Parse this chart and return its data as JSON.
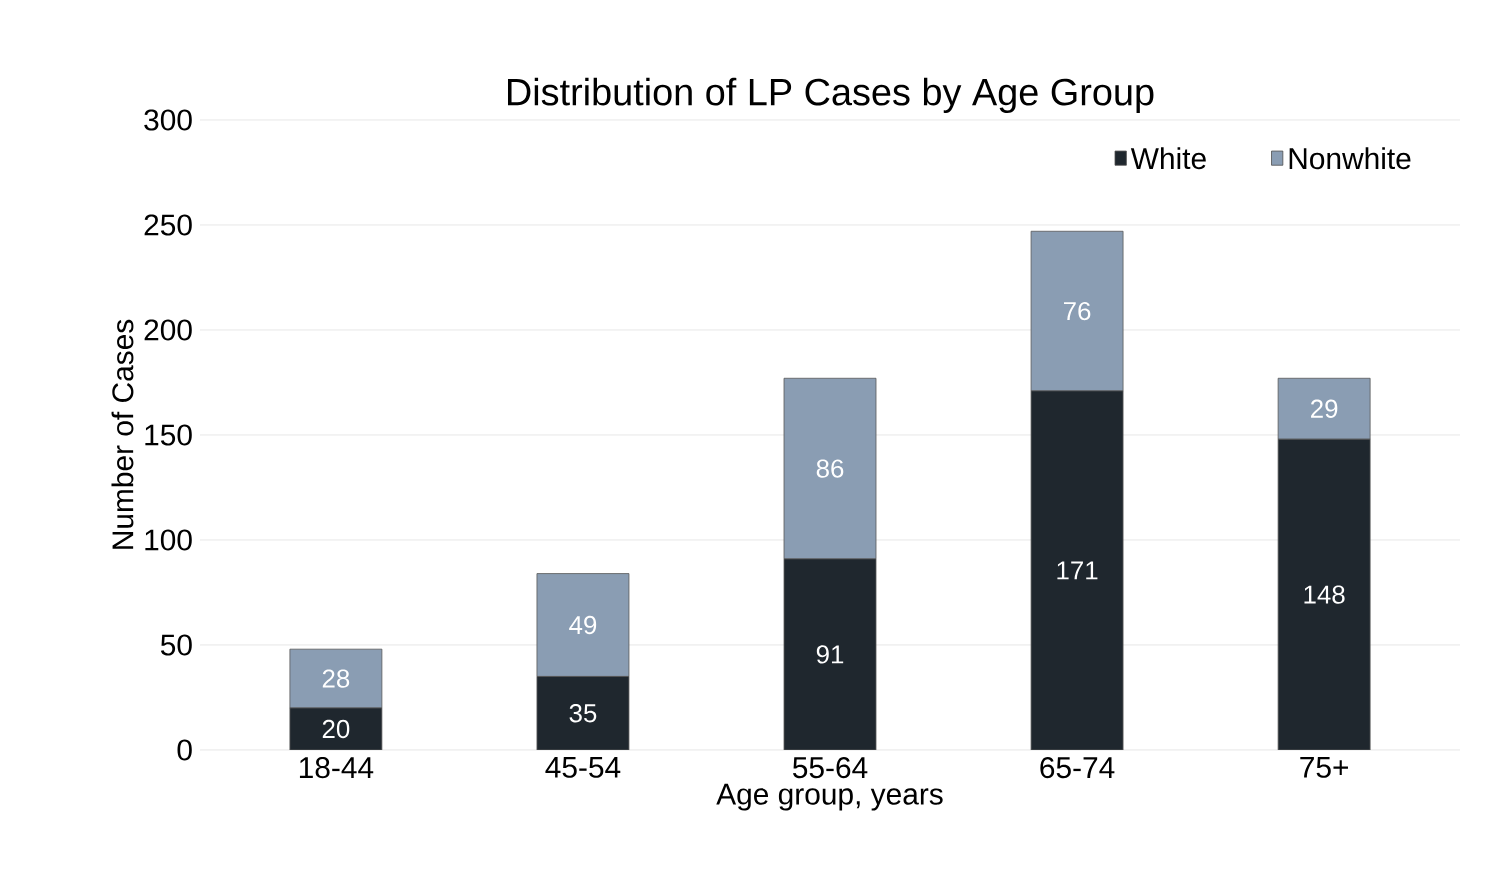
{
  "chart_data": {
    "type": "bar",
    "stacked": true,
    "title": "Distribution of LP Cases by Age Group",
    "xlabel": "Age group, years",
    "ylabel": "Number of Cases",
    "categories": [
      "18-44",
      "45-54",
      "55-64",
      "65-74",
      "75+"
    ],
    "series": [
      {
        "name": "White",
        "color": "#1f272e",
        "values": [
          20,
          35,
          91,
          171,
          148
        ]
      },
      {
        "name": "Nonwhite",
        "color": "#8a9db3",
        "values": [
          28,
          49,
          86,
          76,
          29
        ]
      }
    ],
    "ylim": [
      0,
      300
    ],
    "yticks": [
      0,
      50,
      100,
      150,
      200,
      250,
      300
    ],
    "grid": "y",
    "legend": "top right",
    "data_labels": true
  }
}
